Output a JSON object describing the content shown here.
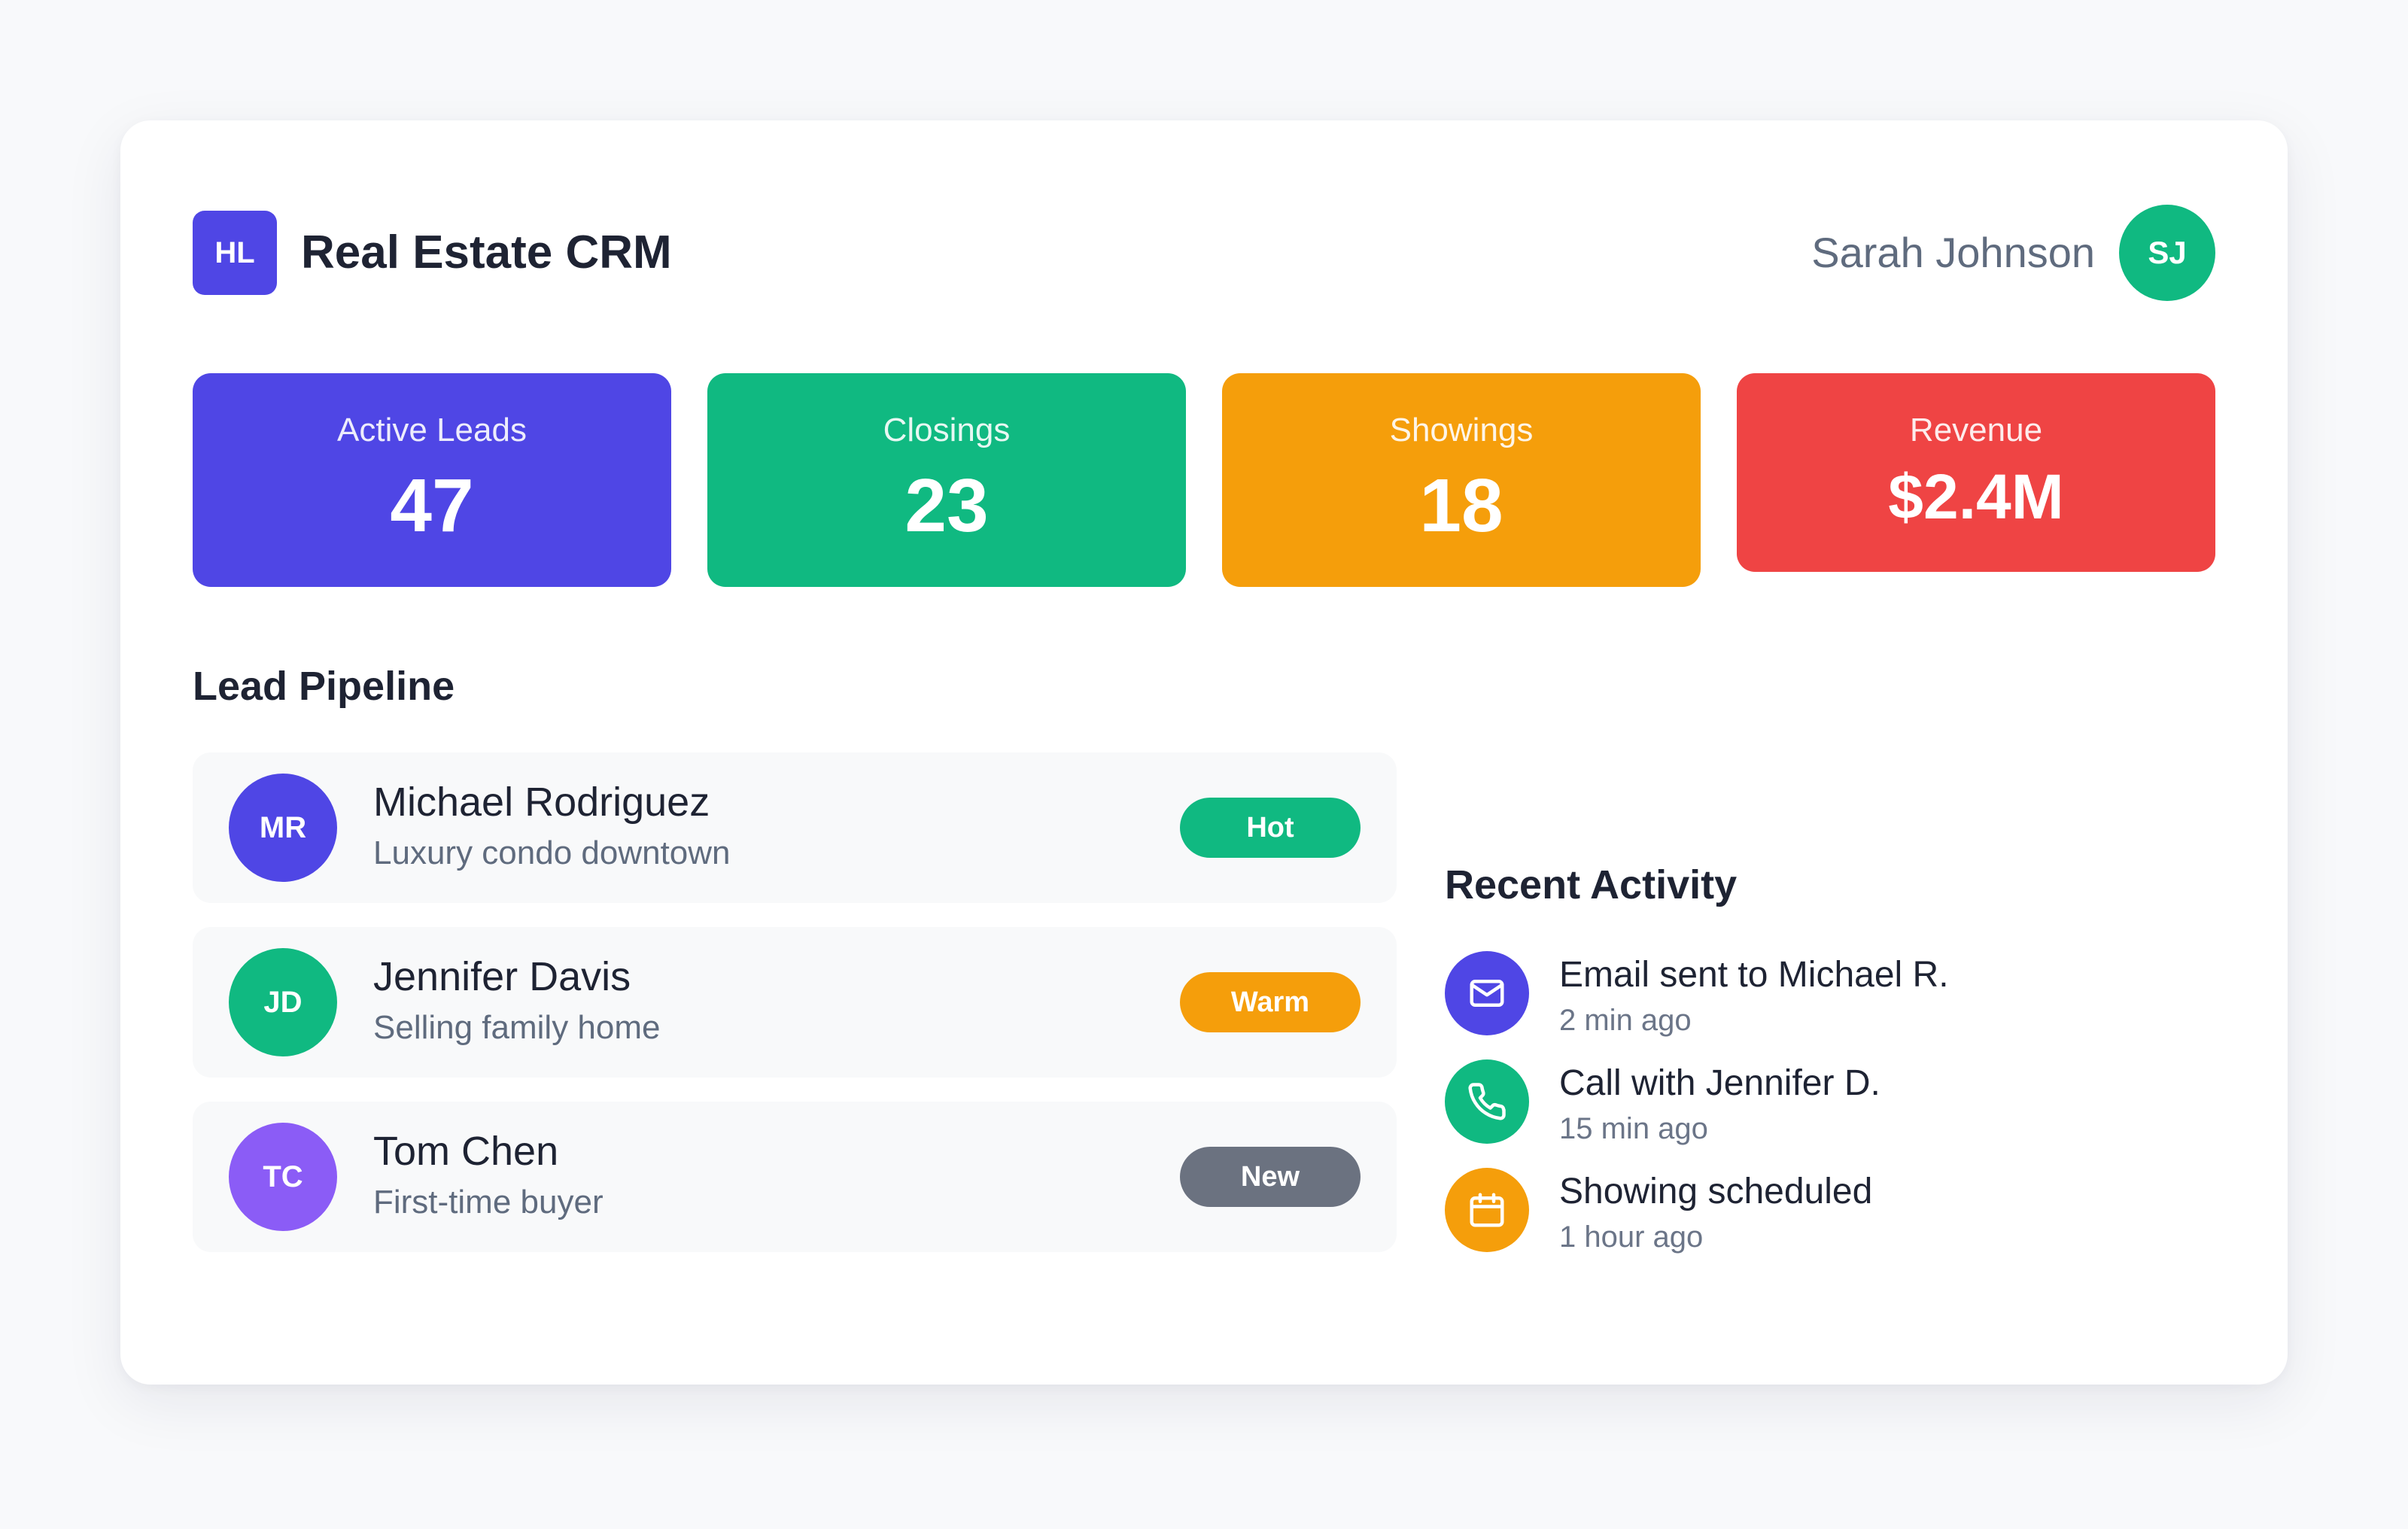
{
  "header": {
    "logo_text": "HL",
    "title": "Real Estate CRM",
    "user_name": "Sarah Johnson",
    "user_initials": "SJ"
  },
  "stats": [
    {
      "label": "Active Leads",
      "value": "47",
      "color": "#4f46e5"
    },
    {
      "label": "Closings",
      "value": "23",
      "color": "#10b981"
    },
    {
      "label": "Showings",
      "value": "18",
      "color": "#f59e0b"
    },
    {
      "label": "Revenue",
      "value": "$2.4M",
      "color": "#ef4444"
    }
  ],
  "pipeline": {
    "title": "Lead Pipeline",
    "leads": [
      {
        "initials": "MR",
        "name": "Michael Rodriguez",
        "description": "Luxury condo downtown",
        "status": "Hot",
        "avatar_color": "#4f46e5",
        "status_color": "#10b981"
      },
      {
        "initials": "JD",
        "name": "Jennifer Davis",
        "description": "Selling family home",
        "status": "Warm",
        "avatar_color": "#10b981",
        "status_color": "#f59e0b"
      },
      {
        "initials": "TC",
        "name": "Tom Chen",
        "description": "First-time buyer",
        "status": "New",
        "avatar_color": "#8b5cf6",
        "status_color": "#6b7280"
      }
    ]
  },
  "activity": {
    "title": "Recent Activity",
    "items": [
      {
        "icon": "mail-icon",
        "title": "Email sent to Michael R.",
        "time": "2 min ago",
        "color": "#4f46e5"
      },
      {
        "icon": "phone-icon",
        "title": "Call with Jennifer D.",
        "time": "15 min ago",
        "color": "#10b981"
      },
      {
        "icon": "calendar-icon",
        "title": "Showing scheduled",
        "time": "1 hour ago",
        "color": "#f59e0b"
      }
    ]
  }
}
